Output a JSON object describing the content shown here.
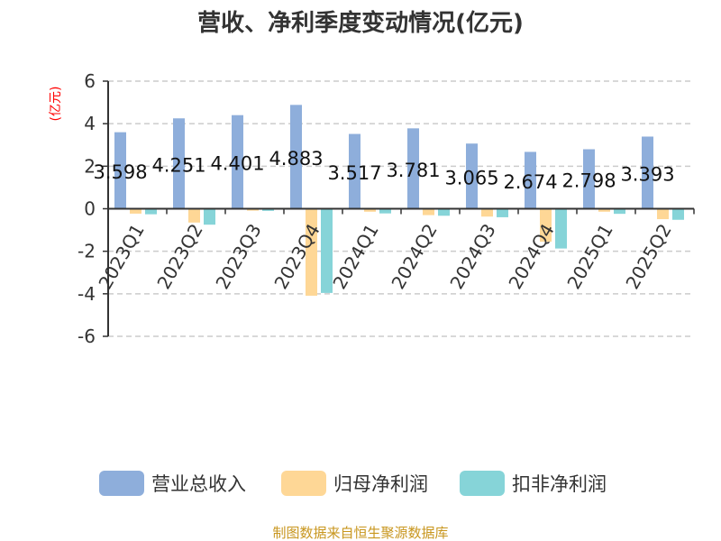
{
  "chart_data": {
    "type": "bar",
    "title": "营收、净利季度变动情况(亿元)",
    "ylabel": "(亿元)",
    "xlabel": "",
    "ylim": [
      -6,
      6
    ],
    "yticks": [
      6,
      4,
      2,
      0,
      -2,
      -4,
      -6
    ],
    "grid": true,
    "legend_position": "bottom",
    "categories": [
      "2023Q1",
      "2023Q2",
      "2023Q3",
      "2023Q4",
      "2024Q1",
      "2024Q2",
      "2024Q3",
      "2024Q4",
      "2025Q1",
      "2025Q2"
    ],
    "series": [
      {
        "name": "营业总收入",
        "color": "#8eaedb",
        "values": [
          3.598,
          4.251,
          4.401,
          4.883,
          3.517,
          3.781,
          3.065,
          2.674,
          2.798,
          3.393
        ],
        "show_labels": true
      },
      {
        "name": "归母净利润",
        "color": "#fed796",
        "values": [
          -0.23,
          -0.65,
          -0.09,
          -4.09,
          -0.14,
          -0.3,
          -0.37,
          -1.55,
          -0.14,
          -0.49
        ],
        "show_labels": false
      },
      {
        "name": "扣非净利润",
        "color": "#86d4d8",
        "values": [
          -0.26,
          -0.75,
          -0.1,
          -3.96,
          -0.22,
          -0.33,
          -0.4,
          -1.87,
          -0.24,
          -0.52
        ],
        "show_labels": false
      }
    ]
  },
  "footer": "制图数据来自恒生聚源数据库",
  "colors": {
    "ylabel": "#ff0000",
    "footer": "#c8961e",
    "axis": "#333333",
    "grid": "#cccccc"
  }
}
